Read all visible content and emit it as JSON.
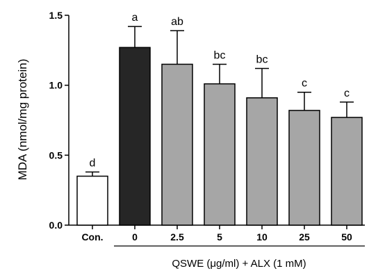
{
  "chart_data": {
    "type": "bar",
    "title": "",
    "ylabel": "MDA (nmol/mg protein)",
    "xlabel": "QSWE (μg/ml) + ALX (1 mM)",
    "ylim": [
      0,
      1.5
    ],
    "yticks": [
      "0.0",
      "0.5",
      "1.0",
      "1.5"
    ],
    "grid": false,
    "legend": "none",
    "categories": [
      "Con.",
      "0",
      "2.5",
      "5",
      "10",
      "25",
      "50"
    ],
    "values": [
      0.35,
      1.27,
      1.15,
      1.01,
      0.91,
      0.82,
      0.77
    ],
    "errors": [
      0.03,
      0.15,
      0.24,
      0.14,
      0.21,
      0.13,
      0.11
    ],
    "significance": [
      "d",
      "a",
      "ab",
      "bc",
      "bc",
      "c",
      "c"
    ],
    "bar_colors": [
      "#ffffff",
      "#262626",
      "#a6a6a6",
      "#a6a6a6",
      "#a6a6a6",
      "#a6a6a6",
      "#a6a6a6"
    ],
    "xlabel_span": [
      1,
      6
    ]
  }
}
